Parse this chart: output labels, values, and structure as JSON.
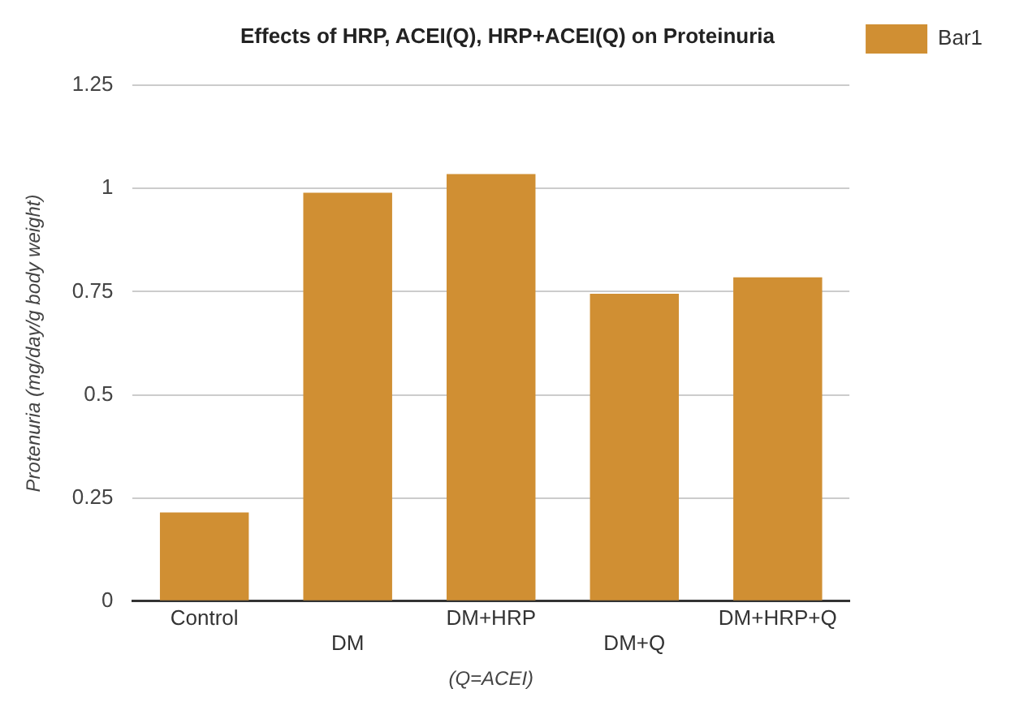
{
  "chart_data": {
    "type": "bar",
    "title": "Effects of HRP, ACEI(Q), HRP+ACEI(Q) on Proteinuria",
    "xlabel": "(Q=ACEI)",
    "ylabel": "Protenuria (mg/day/g body weight)",
    "categories": [
      "Control",
      "DM",
      "DM+HRP",
      "DM+Q",
      "DM+HRP+Q"
    ],
    "series": [
      {
        "name": "Bar1",
        "color": "#d08f33",
        "values": [
          0.215,
          0.99,
          1.035,
          0.745,
          0.785
        ]
      }
    ],
    "ylim": [
      0,
      1.25
    ],
    "yticks": [
      0,
      0.25,
      0.5,
      0.75,
      1,
      1.25
    ],
    "grid": "y",
    "legend": "top right"
  }
}
